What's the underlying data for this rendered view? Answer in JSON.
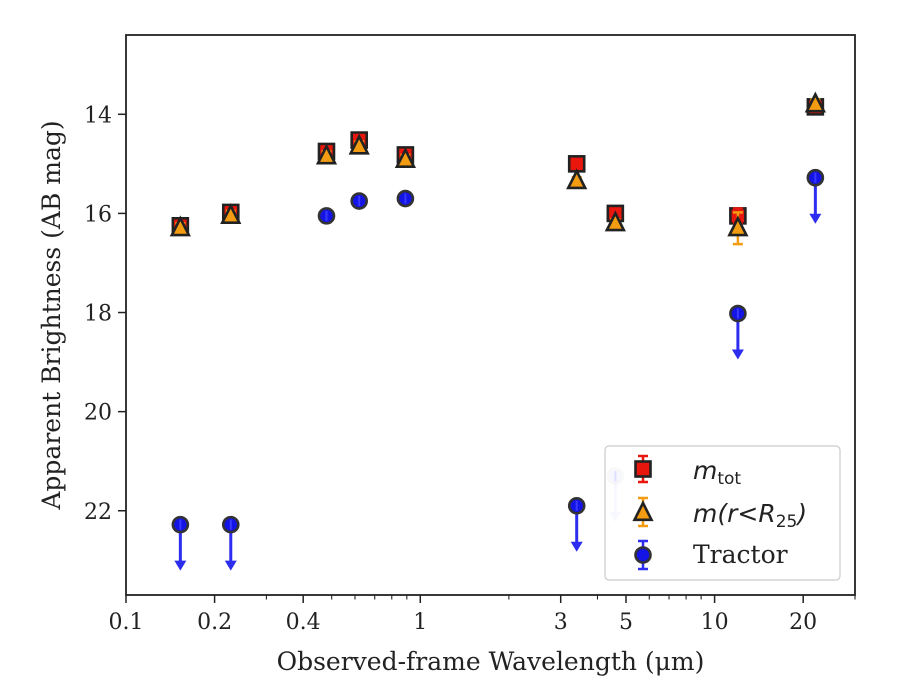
{
  "chart_data": {
    "type": "scatter",
    "title": "",
    "xlabel": "Observed-frame Wavelength (μm)",
    "ylabel": "Apparent Brightness (AB mag)",
    "xscale": "log",
    "xlim": [
      0.1,
      30
    ],
    "ylim": [
      23.7,
      12.4
    ],
    "y_inverted": true,
    "x_ticks": [
      0.1,
      0.2,
      0.4,
      1,
      3,
      5,
      10,
      20
    ],
    "x_tick_labels": [
      "0.1",
      "0.2",
      "0.4",
      "1",
      "3",
      "5",
      "10",
      "20"
    ],
    "y_ticks": [
      14,
      16,
      18,
      20,
      22
    ],
    "y_tick_labels": [
      "14",
      "16",
      "18",
      "20",
      "22"
    ],
    "grid": false,
    "legend_position": "bottom-right",
    "series": [
      {
        "name": "m_tot",
        "legend_main": "m",
        "legend_sub": "tot",
        "marker": "square",
        "color": "#e8160c",
        "edge_color": "#222222",
        "points": [
          {
            "x": 0.153,
            "y": 16.25,
            "err": 0.1
          },
          {
            "x": 0.227,
            "y": 15.98,
            "err": 0.1
          },
          {
            "x": 0.48,
            "y": 14.75,
            "err": 0.1
          },
          {
            "x": 0.62,
            "y": 14.52,
            "err": 0.1
          },
          {
            "x": 0.89,
            "y": 14.82,
            "err": 0.1
          },
          {
            "x": 3.4,
            "y": 15.0,
            "err": 0.08
          },
          {
            "x": 4.6,
            "y": 16.0,
            "err": 0.08
          },
          {
            "x": 12.0,
            "y": 16.05,
            "err": 0.15
          },
          {
            "x": 22.0,
            "y": 13.85,
            "err": 0.1
          }
        ]
      },
      {
        "name": "m(r<R_25)",
        "legend_main": "m(r<R",
        "legend_sub": "25",
        "legend_close": ")",
        "marker": "triangle",
        "color": "#f39c12",
        "edge_color": "#222222",
        "points": [
          {
            "x": 0.153,
            "y": 16.3,
            "err": 0.1
          },
          {
            "x": 0.227,
            "y": 16.05,
            "err": 0.1
          },
          {
            "x": 0.48,
            "y": 14.85,
            "err": 0.1
          },
          {
            "x": 0.62,
            "y": 14.65,
            "err": 0.1
          },
          {
            "x": 0.89,
            "y": 14.92,
            "err": 0.1
          },
          {
            "x": 3.4,
            "y": 15.35,
            "err": 0.08
          },
          {
            "x": 4.6,
            "y": 16.2,
            "err": 0.08
          },
          {
            "x": 12.0,
            "y": 16.3,
            "err": 0.32
          },
          {
            "x": 22.0,
            "y": 13.8,
            "err": 0.1
          }
        ]
      },
      {
        "name": "Tractor",
        "marker": "circle",
        "color": "#1414e6",
        "edge_color": "#333333",
        "points": [
          {
            "x": 0.153,
            "y": 22.28,
            "upper_limit": true
          },
          {
            "x": 0.227,
            "y": 22.28,
            "upper_limit": true
          },
          {
            "x": 0.48,
            "y": 16.05,
            "upper_limit": false
          },
          {
            "x": 0.62,
            "y": 15.75,
            "upper_limit": false
          },
          {
            "x": 0.89,
            "y": 15.7,
            "upper_limit": false
          },
          {
            "x": 3.4,
            "y": 21.9,
            "upper_limit": true
          },
          {
            "x": 4.6,
            "y": 21.3,
            "upper_limit": true,
            "faded": true
          },
          {
            "x": 12.0,
            "y": 18.02,
            "upper_limit": true
          },
          {
            "x": 22.0,
            "y": 15.28,
            "upper_limit": true
          }
        ]
      }
    ]
  }
}
